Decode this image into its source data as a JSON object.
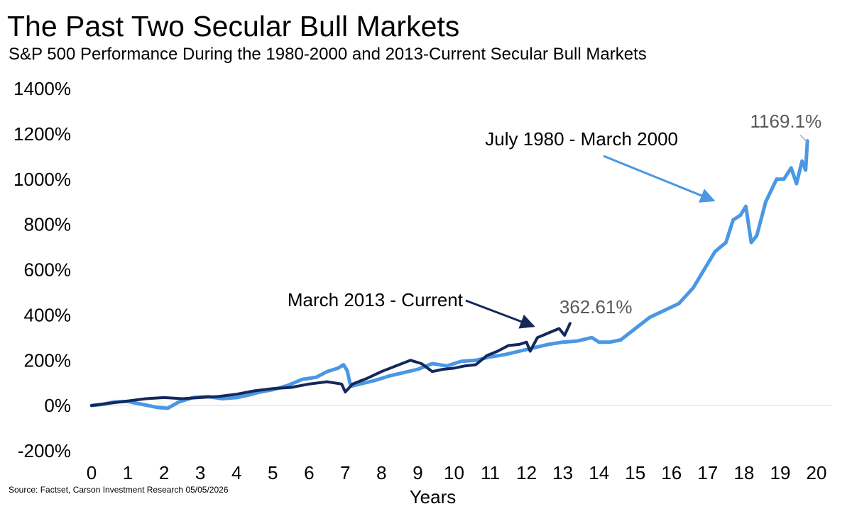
{
  "header": {
    "title": "The Past Two Secular Bull Markets",
    "subtitle": "S&P 500 Performance During the 1980-2000 and 2013-Current Secular Bull Markets"
  },
  "footer": {
    "source": "Source: Factset, Carson Investment Research 05/05/2026"
  },
  "chart_data": {
    "type": "line",
    "xlabel": "Years",
    "ylabel": "",
    "xlim": [
      0,
      20
    ],
    "ylim": [
      -200,
      1400
    ],
    "xticks": [
      0,
      1,
      2,
      3,
      4,
      5,
      6,
      7,
      8,
      9,
      10,
      11,
      12,
      13,
      14,
      15,
      16,
      17,
      18,
      19,
      20
    ],
    "yticks": [
      -200,
      0,
      200,
      400,
      600,
      800,
      1000,
      1200,
      1400
    ],
    "ytick_labels": [
      "-200%",
      "0%",
      "200%",
      "400%",
      "600%",
      "800%",
      "1000%",
      "1200%",
      "1400%"
    ],
    "grid": false,
    "series": [
      {
        "name": "July 1980 - March 2000",
        "color": "#4a97e4",
        "end_label": "1169.1%",
        "points": [
          [
            0,
            0
          ],
          [
            0.3,
            5
          ],
          [
            0.6,
            15
          ],
          [
            1,
            18
          ],
          [
            1.4,
            5
          ],
          [
            1.8,
            -8
          ],
          [
            2.1,
            -12
          ],
          [
            2.4,
            15
          ],
          [
            2.8,
            35
          ],
          [
            3.2,
            40
          ],
          [
            3.6,
            30
          ],
          [
            4,
            35
          ],
          [
            4.3,
            45
          ],
          [
            4.6,
            58
          ],
          [
            5,
            70
          ],
          [
            5.4,
            88
          ],
          [
            5.8,
            115
          ],
          [
            6.2,
            125
          ],
          [
            6.5,
            150
          ],
          [
            6.8,
            165
          ],
          [
            6.95,
            180
          ],
          [
            7.05,
            155
          ],
          [
            7.15,
            85
          ],
          [
            7.4,
            95
          ],
          [
            7.8,
            110
          ],
          [
            8.2,
            130
          ],
          [
            8.6,
            145
          ],
          [
            9,
            160
          ],
          [
            9.4,
            185
          ],
          [
            9.8,
            175
          ],
          [
            10.2,
            195
          ],
          [
            10.6,
            200
          ],
          [
            11,
            215
          ],
          [
            11.4,
            225
          ],
          [
            11.8,
            240
          ],
          [
            12.2,
            255
          ],
          [
            12.6,
            270
          ],
          [
            13,
            280
          ],
          [
            13.4,
            285
          ],
          [
            13.8,
            300
          ],
          [
            14,
            280
          ],
          [
            14.3,
            280
          ],
          [
            14.6,
            290
          ],
          [
            15,
            340
          ],
          [
            15.4,
            390
          ],
          [
            15.8,
            420
          ],
          [
            16.2,
            450
          ],
          [
            16.6,
            520
          ],
          [
            16.9,
            600
          ],
          [
            17.2,
            680
          ],
          [
            17.5,
            720
          ],
          [
            17.7,
            820
          ],
          [
            17.9,
            840
          ],
          [
            18.05,
            880
          ],
          [
            18.2,
            720
          ],
          [
            18.35,
            750
          ],
          [
            18.6,
            900
          ],
          [
            18.9,
            1000
          ],
          [
            19.1,
            1000
          ],
          [
            19.3,
            1050
          ],
          [
            19.45,
            980
          ],
          [
            19.6,
            1080
          ],
          [
            19.7,
            1040
          ],
          [
            19.75,
            1169
          ]
        ]
      },
      {
        "name": "March 2013 - Current",
        "color": "#14285a",
        "end_label": "362.61%",
        "points": [
          [
            0,
            0
          ],
          [
            0.5,
            10
          ],
          [
            1,
            20
          ],
          [
            1.5,
            30
          ],
          [
            2,
            35
          ],
          [
            2.5,
            30
          ],
          [
            3,
            35
          ],
          [
            3.5,
            40
          ],
          [
            4,
            50
          ],
          [
            4.5,
            65
          ],
          [
            5,
            75
          ],
          [
            5.5,
            80
          ],
          [
            6,
            95
          ],
          [
            6.5,
            105
          ],
          [
            6.9,
            95
          ],
          [
            7,
            60
          ],
          [
            7.2,
            95
          ],
          [
            7.6,
            120
          ],
          [
            8,
            150
          ],
          [
            8.4,
            175
          ],
          [
            8.8,
            200
          ],
          [
            9.1,
            185
          ],
          [
            9.4,
            150
          ],
          [
            9.7,
            160
          ],
          [
            10,
            165
          ],
          [
            10.3,
            175
          ],
          [
            10.6,
            180
          ],
          [
            10.9,
            220
          ],
          [
            11.2,
            240
          ],
          [
            11.5,
            265
          ],
          [
            11.8,
            270
          ],
          [
            12,
            280
          ],
          [
            12.1,
            240
          ],
          [
            12.3,
            300
          ],
          [
            12.6,
            320
          ],
          [
            12.9,
            340
          ],
          [
            13.05,
            310
          ],
          [
            13.2,
            362.6
          ]
        ]
      }
    ],
    "annotations": [
      {
        "text": "July 1980 - March 2000",
        "target": [
          17.6,
          880
        ]
      },
      {
        "text": "March 2013 - Current",
        "target": [
          12.2,
          350
        ]
      }
    ]
  }
}
